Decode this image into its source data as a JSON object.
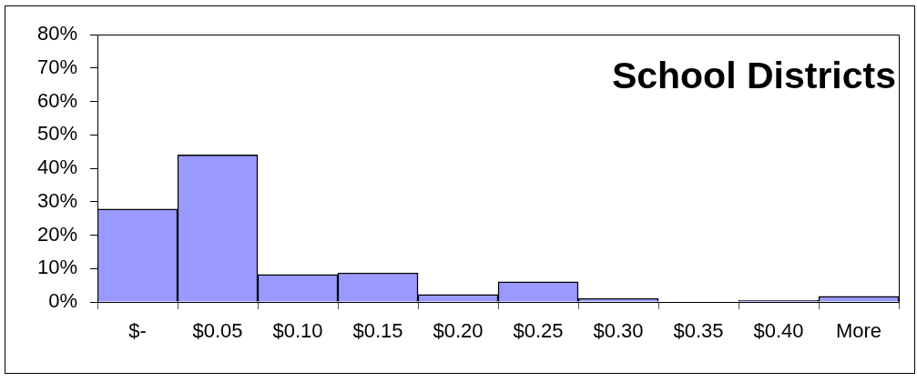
{
  "chart_data": {
    "type": "bar",
    "title": "School Districts",
    "categories": [
      "$-",
      "$0.05",
      "$0.10",
      "$0.15",
      "$0.20",
      "$0.25",
      "$0.30",
      "$0.35",
      "$0.40",
      "More"
    ],
    "values": [
      27.8,
      44,
      8.2,
      8.7,
      2.2,
      6,
      1.1,
      0,
      0.5,
      1.7
    ],
    "color": "#9999ff",
    "ylim": [
      0,
      80
    ],
    "yticks": [
      {
        "value": 0,
        "label": "0%"
      },
      {
        "value": 10,
        "label": "10%"
      },
      {
        "value": 20,
        "label": "20%"
      },
      {
        "value": 30,
        "label": "30%"
      },
      {
        "value": 40,
        "label": "40%"
      },
      {
        "value": 50,
        "label": "50%"
      },
      {
        "value": 60,
        "label": "60%"
      },
      {
        "value": 70,
        "label": "70%"
      },
      {
        "value": 80,
        "label": "80%"
      }
    ],
    "grid": false,
    "legend": false
  }
}
